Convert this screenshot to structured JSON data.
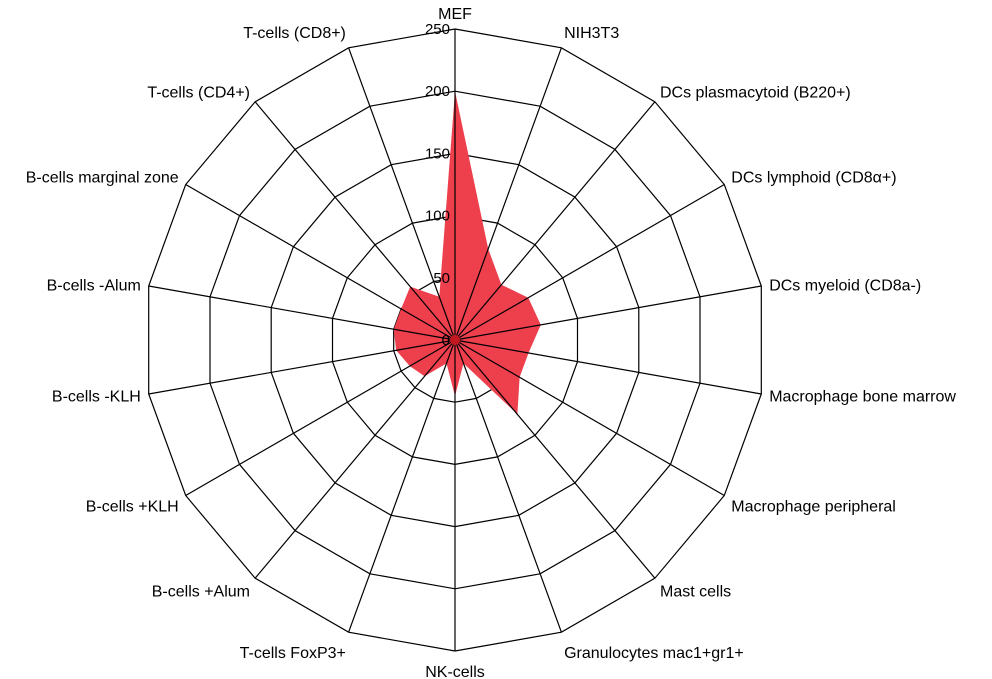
{
  "chart_data": {
    "type": "radar",
    "title": "",
    "categories": [
      "MEF",
      "NIH3T3",
      "DCs plasmacytoid (B220+)",
      "DCs lymphoid (CD8α+)",
      "DCs myeloid (CD8a-)",
      "Macrophage bone marrow",
      "Macrophage peripheral",
      "Mast cells",
      "Granulocytes mac1+gr1+",
      "NK-cells",
      "T-cells FoxP3+",
      "B-cells +Alum",
      "B-cells +KLH",
      "B-cells -KLH",
      "B-cells -Alum",
      "B-cells marginal zone",
      "T-cells (CD4+)",
      "T-cells (CD8+)"
    ],
    "series": [
      {
        "values": [
          200,
          78,
          58,
          68,
          70,
          60,
          60,
          78,
          20,
          45,
          20,
          38,
          42,
          48,
          50,
          50,
          56,
          37
        ]
      }
    ],
    "rlim": [
      0,
      250
    ],
    "rticks": [
      "0",
      "50",
      "100",
      "150",
      "200",
      "250"
    ],
    "grid": true,
    "legend": "none",
    "colors": {
      "fill": "#ee3f4d",
      "center_dot": "#c41820",
      "grid": "#000000"
    }
  }
}
